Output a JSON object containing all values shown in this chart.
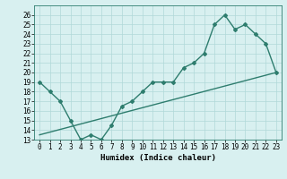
{
  "xlabel": "Humidex (Indice chaleur)",
  "ylabel": "",
  "curve_x": [
    0,
    1,
    2,
    3,
    4,
    5,
    6,
    7,
    8,
    9,
    10,
    11,
    12,
    13,
    14,
    15,
    16,
    17,
    18,
    19,
    20,
    21,
    22,
    23
  ],
  "curve_y": [
    19,
    18,
    17,
    15,
    13,
    13.5,
    13,
    14.5,
    16.5,
    17,
    18,
    19,
    19,
    19,
    20.5,
    21,
    22,
    25,
    26,
    24.5,
    25,
    24,
    23,
    20
  ],
  "line_x": [
    0,
    23
  ],
  "line_y": [
    13.5,
    20
  ],
  "color": "#2e7d6e",
  "bg_color": "#d8f0f0",
  "ylim": [
    13,
    27
  ],
  "xlim": [
    -0.5,
    23.5
  ],
  "yticks": [
    13,
    14,
    15,
    16,
    17,
    18,
    19,
    20,
    21,
    22,
    23,
    24,
    25,
    26
  ],
  "xticks": [
    0,
    1,
    2,
    3,
    4,
    5,
    6,
    7,
    8,
    9,
    10,
    11,
    12,
    13,
    14,
    15,
    16,
    17,
    18,
    19,
    20,
    21,
    22,
    23
  ],
  "grid_color": "#b0d8d8",
  "marker": "D",
  "marker_size": 2,
  "line_width": 1.0,
  "tick_fontsize": 5.5,
  "xlabel_fontsize": 6.5
}
